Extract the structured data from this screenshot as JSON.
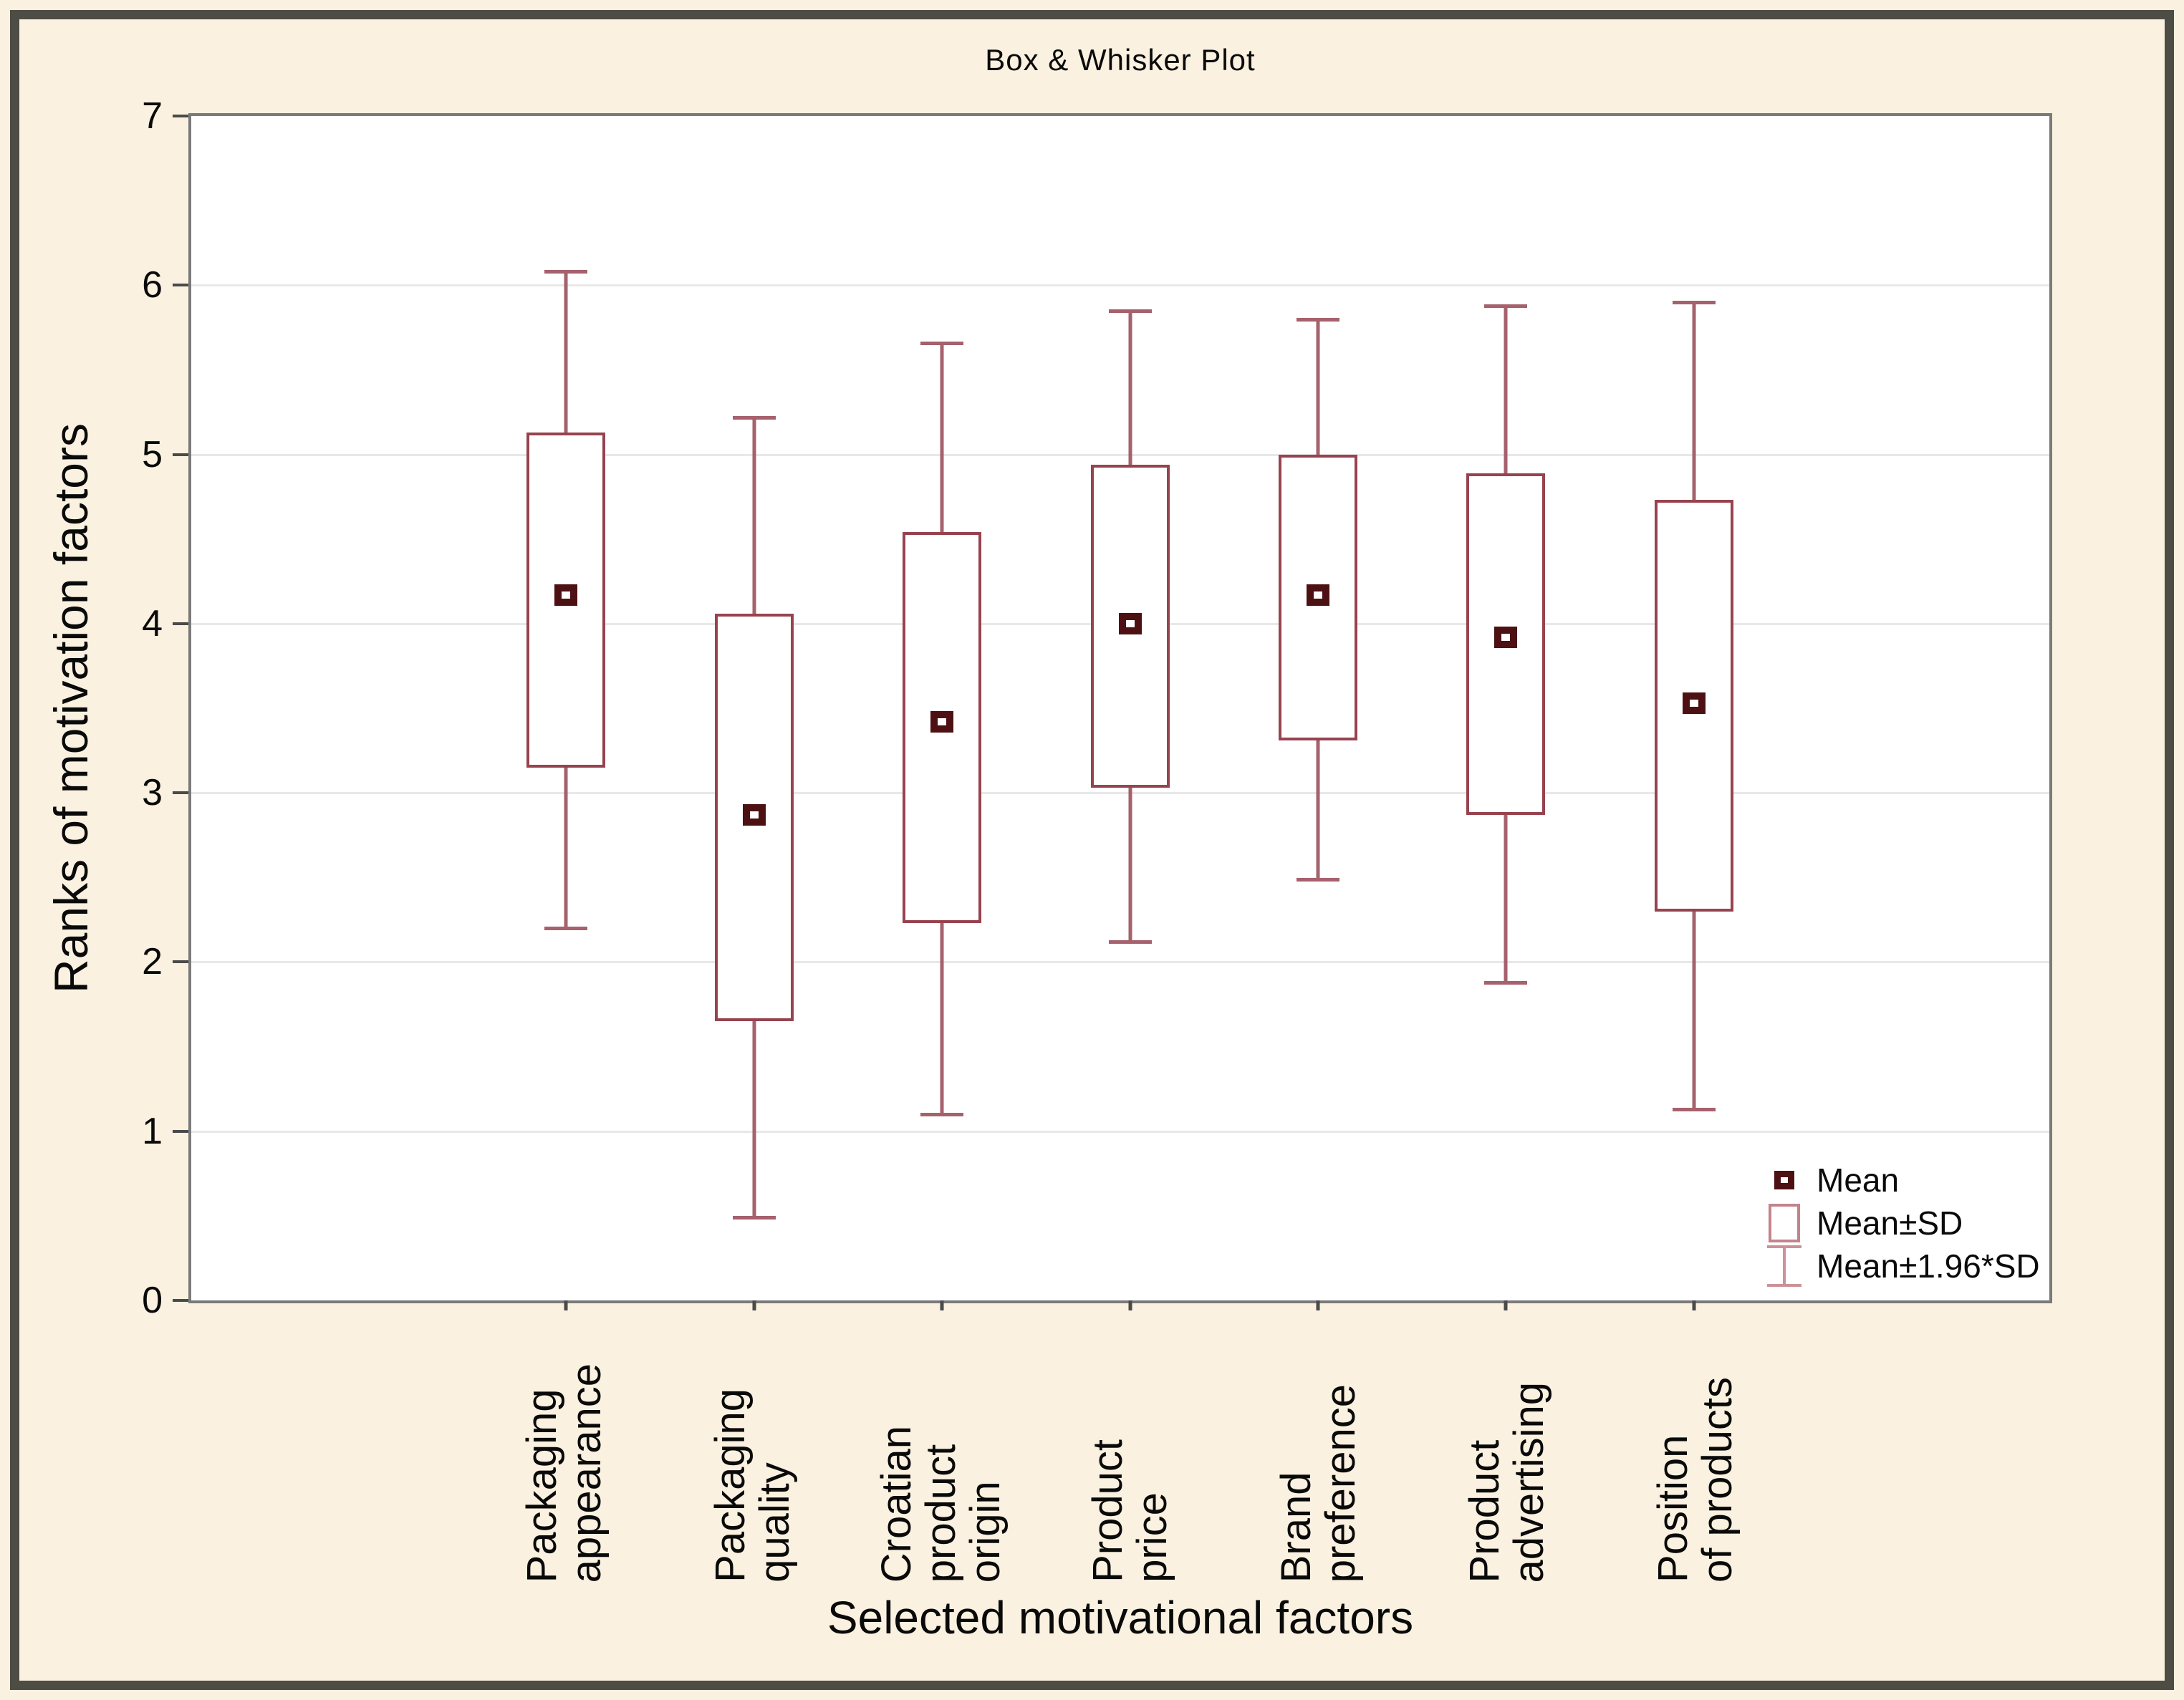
{
  "title": "Box & Whisker Plot",
  "chart_data": {
    "type": "box",
    "title": "Box & Whisker Plot",
    "xlabel": "Selected motivational factors",
    "ylabel": "Ranks of motivation factors",
    "ylim": [
      0,
      7
    ],
    "yticks": [
      0,
      1,
      2,
      3,
      4,
      5,
      6,
      7
    ],
    "grid": "horizontal",
    "legend_position": "inside-bottom-right",
    "legend": [
      {
        "label": "Mean",
        "marker": "mean-square"
      },
      {
        "label": "Mean±SD",
        "marker": "box"
      },
      {
        "label": "Mean±1.96*SD",
        "marker": "whisker"
      }
    ],
    "categories": [
      {
        "label": "Packaging appearance",
        "label_lines": [
          "Packaging",
          "appearance"
        ],
        "mean": 4.17,
        "sd_low": 3.15,
        "sd_high": 5.13,
        "whisker_low": 2.2,
        "whisker_high": 6.08
      },
      {
        "label": "Packaging quality",
        "label_lines": [
          "Packaging",
          "quality"
        ],
        "mean": 2.87,
        "sd_low": 1.65,
        "sd_high": 4.06,
        "whisker_low": 0.49,
        "whisker_high": 5.22
      },
      {
        "label": "Croatian product origin",
        "label_lines": [
          "Croatian",
          "product",
          "origin"
        ],
        "mean": 3.42,
        "sd_low": 2.23,
        "sd_high": 4.54,
        "whisker_low": 1.1,
        "whisker_high": 5.66
      },
      {
        "label": "Product price",
        "label_lines": [
          "Product",
          "price"
        ],
        "mean": 4.0,
        "sd_low": 3.03,
        "sd_high": 4.94,
        "whisker_low": 2.12,
        "whisker_high": 5.85
      },
      {
        "label": "Brand preference",
        "label_lines": [
          "Brand",
          "preference"
        ],
        "mean": 4.17,
        "sd_low": 3.31,
        "sd_high": 5.0,
        "whisker_low": 2.49,
        "whisker_high": 5.8
      },
      {
        "label": "Product advertising",
        "label_lines": [
          "Product",
          "advertising"
        ],
        "mean": 3.92,
        "sd_low": 2.87,
        "sd_high": 4.89,
        "whisker_low": 1.88,
        "whisker_high": 5.88
      },
      {
        "label": "Position of products",
        "label_lines": [
          "Position",
          "of products"
        ],
        "mean": 3.53,
        "sd_low": 2.3,
        "sd_high": 4.73,
        "whisker_low": 1.13,
        "whisker_high": 5.9
      }
    ]
  },
  "colors": {
    "background": "#FAF1E0",
    "frame": "#4E4D45",
    "plot_border": "#7A7A7A",
    "grid": "#E8E8E8",
    "tick": "#4A4A4A",
    "text": "#141414",
    "box_border": "#97434F",
    "whisker": "#A5616C",
    "mean_border": "#4E1113",
    "mean_fill": "#FFFFFF",
    "legend_box": "#C2848B",
    "legend_whisker": "#CC9199"
  }
}
